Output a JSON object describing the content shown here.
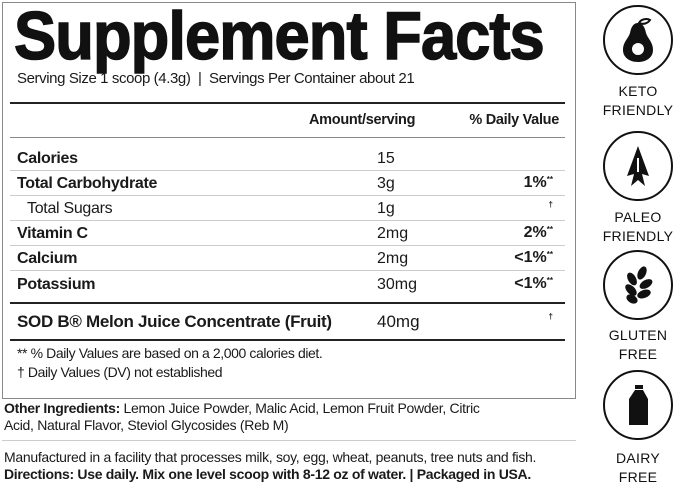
{
  "title": "Supplement Facts",
  "serving": "Serving Size 1 scoop (4.3g)  |  Servings Per Container about 21",
  "headers": {
    "amount": "Amount/serving",
    "dv": "% Daily Value"
  },
  "rows": [
    {
      "label": "Calories",
      "amount": "15",
      "dv": "",
      "mark": ""
    },
    {
      "label": "Total Carbohydrate",
      "amount": "3g",
      "dv": "1%",
      "mark": "**"
    },
    {
      "label": "Total Sugars",
      "amount": "1g",
      "dv": "",
      "mark": "†"
    },
    {
      "label": "Vitamin C",
      "amount": "2mg",
      "dv": "2%",
      "mark": "**"
    },
    {
      "label": "Calcium",
      "amount": "2mg",
      "dv": "<1%",
      "mark": "**"
    },
    {
      "label": "Potassium",
      "amount": "30mg",
      "dv": "<1%",
      "mark": "**"
    },
    {
      "label": "SOD B® Melon Juice Concentrate (Fruit)",
      "amount": "40mg",
      "dv": "",
      "mark": "†"
    }
  ],
  "footnotes": [
    "**  % Daily Values are based on a 2,000 calories diet.",
    "† Daily Values (DV) not established"
  ],
  "other_ingredients": {
    "label": "Other Ingredients:",
    "line1": " Lemon Juice Powder, Malic Acid, Lemon Fruit Powder, Citric",
    "line2": "Acid, Natural Flavor, Steviol Glycosides (Reb M)"
  },
  "facility": "Manufactured in a facility that processes milk, soy, egg, wheat, peanuts, tree nuts and fish.",
  "directions": "Directions: Use daily. Mix one level scoop with 8-12 oz of water. | Packaged in USA.",
  "badges": [
    {
      "icon": "avocado-icon",
      "line1": "KETO",
      "line2": "FRIENDLY"
    },
    {
      "icon": "arrowhead-icon",
      "line1": "PALEO",
      "line2": "FRIENDLY"
    },
    {
      "icon": "wheat-icon",
      "line1": "GLUTEN",
      "line2": "FREE"
    },
    {
      "icon": "milk-bottle-icon",
      "line1": "DAIRY",
      "line2": "FREE"
    }
  ]
}
